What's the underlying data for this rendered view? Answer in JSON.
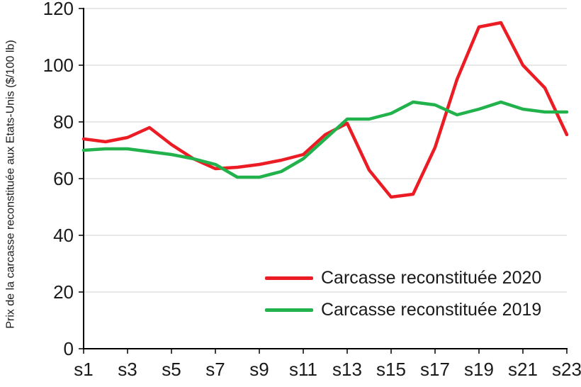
{
  "chart_data": {
    "type": "line",
    "title": "",
    "ylabel": "Prix de la carcasse reconstituée aux Etats-Unis ($/100 lb)",
    "xlabel": "",
    "ylim": [
      0,
      120
    ],
    "ytick_step": 20,
    "grid": true,
    "legend_position": "inside-bottom-right",
    "n_points": 23,
    "x_labels": [
      "s1",
      "s3",
      "s5",
      "s7",
      "s9",
      "s11",
      "s13",
      "s15",
      "s17",
      "s19",
      "s21",
      "s23"
    ],
    "x_label_every": 2,
    "axis_color": "#000000",
    "gridline_color": "#d9d9d9",
    "series": [
      {
        "name": "Carcasse reconstituée 2020",
        "color": "#ec1c24",
        "values": [
          74,
          73,
          74.5,
          78,
          72,
          67,
          63.5,
          64,
          65,
          66.5,
          68.5,
          75.5,
          79.5,
          63,
          53.5,
          54.5,
          71,
          95,
          113.5,
          115,
          100,
          92,
          75.5
        ]
      },
      {
        "name": "Carcasse reconstituée 2019",
        "color": "#21b24b",
        "values": [
          70,
          70.5,
          70.5,
          69.5,
          68.5,
          67,
          65,
          60.5,
          60.5,
          62.5,
          67,
          74,
          81,
          81,
          83,
          87,
          86,
          82.5,
          84.5,
          87,
          84.5,
          83.5,
          83.5
        ]
      }
    ]
  }
}
